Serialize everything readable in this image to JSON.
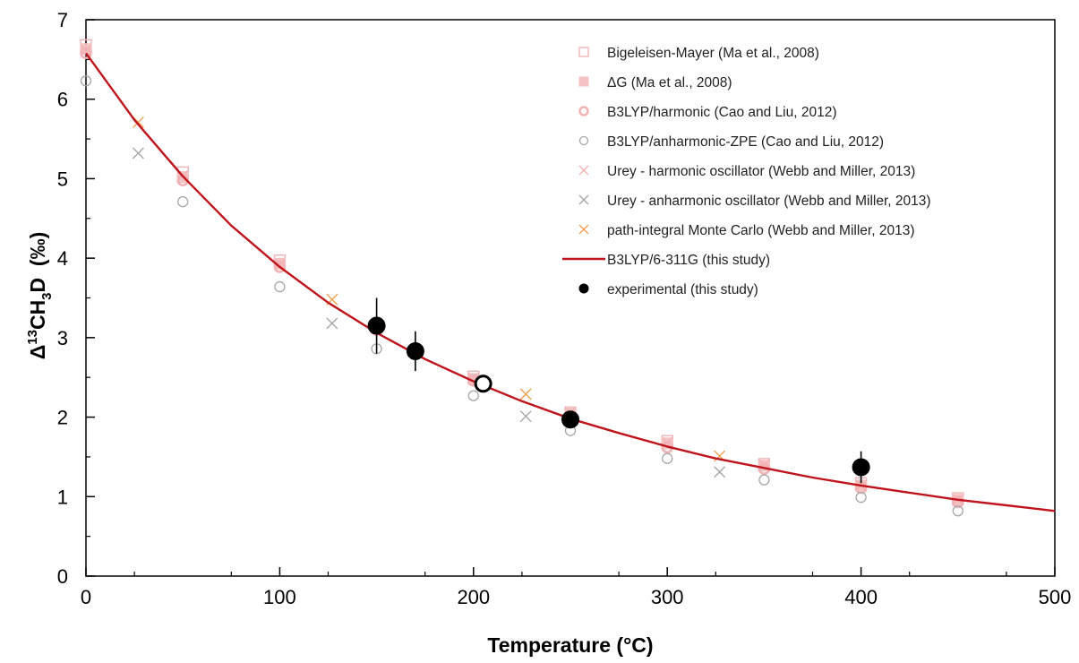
{
  "chart_data": {
    "type": "scatter",
    "title": "",
    "xlabel": "Temperature (°C)",
    "ylabel": {
      "pre": "Δ",
      "sup": "13",
      "mid1": "CH",
      "sub": "3",
      "mid2": "D",
      "unit": "  (‰)"
    },
    "xlim": [
      0,
      500
    ],
    "ylim": [
      0,
      7
    ],
    "xticks": [
      0,
      100,
      200,
      300,
      400,
      500
    ],
    "yticks": [
      0,
      1,
      2,
      3,
      4,
      5,
      6,
      7
    ],
    "xtick_labels": [
      "0",
      "100",
      "200",
      "300",
      "400",
      "500"
    ],
    "ytick_labels": [
      "0",
      "1",
      "2",
      "3",
      "4",
      "5",
      "6",
      "7"
    ],
    "grid": false,
    "legend_position": "top-right",
    "colors": {
      "pink": "#f2b3b6",
      "pink_fill": "#f5c2c4",
      "gray": "#a6a6a6",
      "orange": "#f0a050",
      "curve": "#c0141c",
      "experimental": "#000000"
    },
    "series": [
      {
        "name": "Bigeleisen-Mayer (Ma et al., 2008)",
        "marker": "square-open",
        "x": [
          0,
          50,
          100,
          150,
          200,
          250,
          300,
          350,
          400,
          450
        ],
        "y": [
          6.68,
          5.08,
          3.97,
          3.15,
          2.51,
          2.06,
          1.7,
          1.41,
          1.17,
          0.98
        ]
      },
      {
        "name": "ΔG (Ma et al., 2008)",
        "marker": "square-filled",
        "x": [
          0,
          50,
          100,
          150,
          200,
          250,
          300,
          350,
          400,
          450
        ],
        "y": [
          6.63,
          5.02,
          3.93,
          3.12,
          2.48,
          2.06,
          1.67,
          1.39,
          1.14,
          0.96
        ]
      },
      {
        "name": "B3LYP/harmonic (Cao and Liu, 2012)",
        "marker": "circle-thick-open",
        "x": [
          0,
          50,
          100,
          150,
          200,
          250,
          300,
          350,
          400,
          450
        ],
        "y": [
          6.58,
          4.98,
          3.89,
          3.1,
          2.46,
          2.0,
          1.62,
          1.35,
          1.11,
          0.93
        ]
      },
      {
        "name": "B3LYP/anharmonic-ZPE (Cao and Liu, 2012)",
        "marker": "circle-open",
        "x": [
          0,
          50,
          100,
          150,
          200,
          250,
          300,
          350,
          400,
          450
        ],
        "y": [
          6.23,
          4.71,
          3.64,
          2.86,
          2.27,
          1.83,
          1.48,
          1.21,
          0.99,
          0.82
        ]
      },
      {
        "name": "Urey - harmonic oscillator (Webb and Miller, 2013)",
        "marker": "x",
        "x": [
          0,
          50,
          100,
          150,
          200,
          250,
          300,
          350,
          400,
          450
        ],
        "y": [
          6.62,
          5.04,
          3.92,
          3.12,
          2.49,
          2.06,
          1.68,
          1.4,
          1.14,
          0.96
        ]
      },
      {
        "name": "Urey - anharmonic oscillator (Webb and Miller, 2013)",
        "marker": "x",
        "x": [
          27,
          127,
          227,
          327
        ],
        "y": [
          5.32,
          3.18,
          2.01,
          1.31
        ]
      },
      {
        "name": "path-integral Monte Carlo (Webb and Miller, 2013)",
        "marker": "x",
        "x": [
          27,
          127,
          227,
          327
        ],
        "y": [
          5.71,
          3.48,
          2.29,
          1.51
        ]
      },
      {
        "name": "B3LYP/6-311G (this study)",
        "marker": "line",
        "x": [
          0,
          25,
          50,
          75,
          100,
          125,
          150,
          175,
          200,
          225,
          250,
          275,
          300,
          325,
          350,
          375,
          400,
          425,
          450,
          475,
          500
        ],
        "y": [
          6.58,
          5.74,
          5.03,
          4.41,
          3.89,
          3.44,
          3.06,
          2.73,
          2.45,
          2.2,
          1.98,
          1.8,
          1.63,
          1.48,
          1.36,
          1.24,
          1.14,
          1.05,
          0.96,
          0.89,
          0.82
        ]
      },
      {
        "name": "experimental (this study)",
        "marker": "circle-filled",
        "x": [
          150,
          170,
          250,
          400
        ],
        "y": [
          3.15,
          2.83,
          1.97,
          1.37
        ],
        "err": [
          0.35,
          0.25,
          0.05,
          0.2
        ]
      }
    ],
    "open_experimental": {
      "x": 205,
      "y": 2.42
    }
  }
}
